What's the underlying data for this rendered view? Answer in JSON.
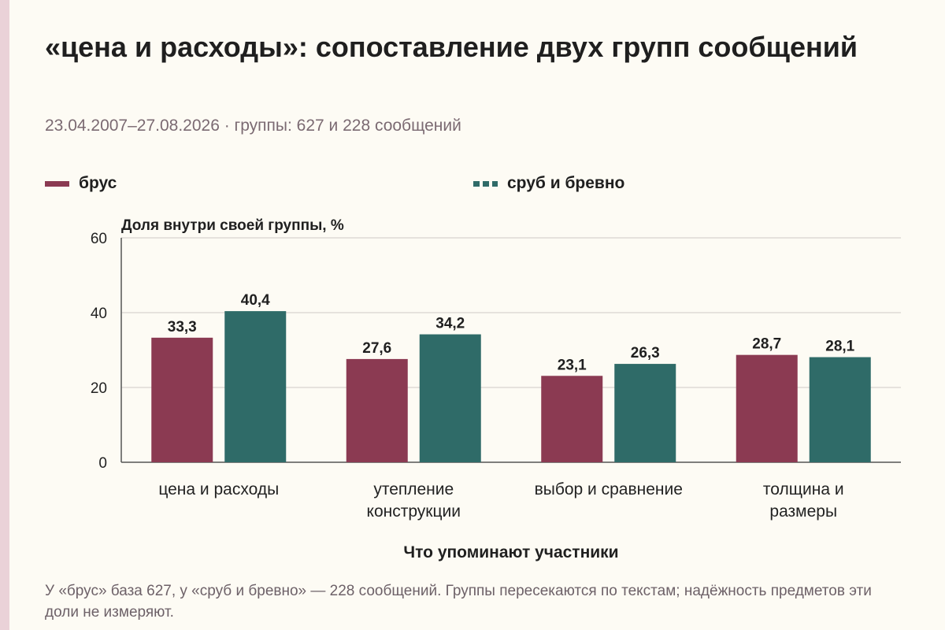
{
  "title": "«цена и расходы»: сопоставление двух групп сообщений",
  "subtitle": "23.04.2007–27.08.2026 · группы: 627 и 228 сообщений",
  "legend": [
    {
      "label": "брус",
      "color": "#8b3a52",
      "style": "solid"
    },
    {
      "label": "сруб и бревно",
      "color": "#2f6b68",
      "style": "dashed"
    }
  ],
  "note": "У «брус» база 627, у «сруб и бревно» — 228 сообщений. Группы пересекаются по текстам; надёжность предметов эти доли не измеряют.",
  "chart_data": {
    "type": "bar",
    "ylabel": "Доля внутри своей группы, %",
    "xlabel": "Что упоминают участники",
    "ylim": [
      0,
      60
    ],
    "yticks": [
      0,
      20,
      40,
      60
    ],
    "grid": true,
    "legend_position": "top",
    "categories": [
      [
        "цена и расходы"
      ],
      [
        "утепление",
        "конструкции"
      ],
      [
        "выбор и сравнение"
      ],
      [
        "толщина и",
        "размеры"
      ]
    ],
    "series": [
      {
        "name": "брус",
        "color": "#8b3a52",
        "values": [
          33.3,
          27.6,
          23.1,
          28.7
        ],
        "labels": [
          "33,3",
          "27,6",
          "23,1",
          "28,7"
        ]
      },
      {
        "name": "сруб и бревно",
        "color": "#2f6b68",
        "values": [
          40.4,
          34.2,
          26.3,
          28.1
        ],
        "labels": [
          "40,4",
          "34,2",
          "26,3",
          "28,1"
        ]
      }
    ]
  }
}
